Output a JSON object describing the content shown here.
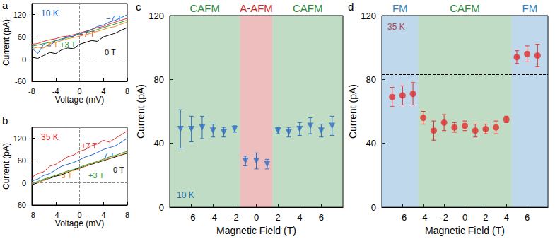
{
  "chart_data": [
    {
      "type": "line",
      "title": "a",
      "annotation": "10 K",
      "annotation_color": "#2060d0",
      "xlabel": "Voltage (mV)",
      "ylabel": "Current (pA)",
      "xlim": [
        -8,
        8
      ],
      "xticks": [
        -8,
        -4,
        0,
        4,
        8
      ],
      "ylim": [
        -60,
        150
      ],
      "yticks": [
        -60,
        0,
        60,
        120
      ],
      "hlines": [
        0
      ],
      "vlines": [
        0
      ],
      "x": [
        -8,
        -7,
        -6,
        -5,
        -4,
        -3,
        -2,
        -1,
        0,
        1,
        2,
        3,
        4,
        5,
        6,
        7,
        8
      ],
      "series": [
        {
          "name": "0 T",
          "color": "#000000",
          "values": [
            5,
            2,
            10,
            18,
            15,
            25,
            30,
            28,
            40,
            45,
            50,
            48,
            60,
            65,
            70,
            78,
            85
          ]
        },
        {
          "name": "−3 T",
          "color": "#f08a24",
          "values": [
            28,
            32,
            30,
            42,
            45,
            50,
            55,
            58,
            62,
            66,
            70,
            75,
            80,
            85,
            88,
            95,
            100
          ]
        },
        {
          "name": "+3 T",
          "color": "#2e9a3a",
          "values": [
            35,
            38,
            42,
            45,
            50,
            55,
            58,
            62,
            68,
            72,
            75,
            80,
            85,
            90,
            95,
            100,
            105
          ]
        },
        {
          "name": "+7 T",
          "color": "#e03030",
          "values": [
            40,
            42,
            48,
            52,
            55,
            60,
            62,
            66,
            70,
            75,
            80,
            85,
            88,
            95,
            100,
            105,
            110
          ]
        },
        {
          "name": "−7 T",
          "color": "#2060d0",
          "values": [
            30,
            15,
            40,
            35,
            50,
            52,
            60,
            62,
            70,
            72,
            80,
            88,
            92,
            100,
            105,
            112,
            120
          ]
        }
      ]
    },
    {
      "type": "line",
      "title": "b",
      "annotation": "35 K",
      "annotation_color": "#e03030",
      "xlabel": "Voltage (mV)",
      "ylabel": "Current (pA)",
      "xlim": [
        -8,
        8
      ],
      "xticks": [
        -8,
        -4,
        0,
        4,
        8
      ],
      "ylim": [
        -60,
        150
      ],
      "yticks": [
        -60,
        0,
        60,
        120
      ],
      "hlines": [
        0
      ],
      "vlines": [
        0
      ],
      "x": [
        -8,
        -7,
        -6,
        -5,
        -4,
        -3,
        -2,
        -1,
        0,
        1,
        2,
        3,
        4,
        5,
        6,
        7,
        8
      ],
      "series": [
        {
          "name": "0 T",
          "color": "#000000",
          "values": [
            -5,
            0,
            8,
            12,
            18,
            22,
            28,
            35,
            40,
            45,
            50,
            55,
            60,
            65,
            70,
            75,
            80
          ]
        },
        {
          "name": "−3 T",
          "color": "#f08a24",
          "values": [
            -3,
            2,
            6,
            14,
            20,
            25,
            30,
            33,
            38,
            45,
            52,
            56,
            62,
            66,
            72,
            76,
            82
          ]
        },
        {
          "name": "+3 T",
          "color": "#2e9a3a",
          "values": [
            -2,
            4,
            10,
            15,
            20,
            26,
            32,
            36,
            42,
            48,
            53,
            58,
            64,
            70,
            74,
            80,
            85
          ]
        },
        {
          "name": "+7 T",
          "color": "#e03030",
          "values": [
            15,
            25,
            30,
            45,
            50,
            60,
            70,
            75,
            85,
            90,
            100,
            105,
            115,
            110,
            120,
            130,
            140
          ]
        },
        {
          "name": "−7 T",
          "color": "#2060d0",
          "values": [
            5,
            10,
            20,
            25,
            35,
            45,
            50,
            55,
            62,
            70,
            75,
            82,
            90,
            95,
            100,
            110,
            120
          ]
        }
      ]
    },
    {
      "type": "scatter",
      "title": "c",
      "annotation": "10 K",
      "annotation_color": "#2060d0",
      "xlabel": "Magnetic Field (T)",
      "ylabel": "Current (pA)",
      "xlim": [
        -8,
        8
      ],
      "xticks": [
        -6,
        -4,
        -2,
        0,
        2,
        4,
        6
      ],
      "ylim": [
        0,
        120
      ],
      "yticks": [
        0,
        40,
        80,
        120
      ],
      "regions": [
        {
          "label": "CAFM",
          "from": -8,
          "to": -1.5,
          "color": "#2e8b3a"
        },
        {
          "label": "A-AFM",
          "from": -1.5,
          "to": 1.5,
          "color": "#c62828"
        },
        {
          "label": "CAFM",
          "from": 1.5,
          "to": 8,
          "color": "#2e8b3a"
        }
      ],
      "x": [
        -7,
        -6,
        -5,
        -4,
        -3,
        -2,
        -1,
        0,
        1,
        2,
        3,
        4,
        5,
        6,
        7
      ],
      "series": [
        {
          "color": "#2f6fc0",
          "marker": "triangle_down",
          "values": [
            49,
            49,
            50,
            48,
            47,
            49,
            29,
            29,
            27,
            48,
            47,
            49,
            51,
            48,
            51
          ],
          "errors": [
            12,
            8,
            7,
            4,
            3,
            2,
            3,
            5,
            3,
            2,
            3,
            4,
            5,
            4,
            6
          ]
        }
      ]
    },
    {
      "type": "scatter",
      "title": "d",
      "annotation": "35 K",
      "annotation_color": "#e03030",
      "xlabel": "Magnetic Field (T)",
      "ylabel": "Current (pA)",
      "xlim": [
        -8,
        8
      ],
      "xticks": [
        -6,
        -4,
        -2,
        0,
        2,
        4,
        6
      ],
      "ylim": [
        0,
        120
      ],
      "yticks": [
        0,
        40,
        80,
        120
      ],
      "hlines": [
        83
      ],
      "regions": [
        {
          "label": "FM",
          "from": -8,
          "to": -4.5,
          "color": "#2f7fc1"
        },
        {
          "label": "CAFM",
          "from": -4.5,
          "to": 4.5,
          "color": "#2e8b3a"
        },
        {
          "label": "FM",
          "from": 4.5,
          "to": 8,
          "color": "#2f7fc1"
        }
      ],
      "x": [
        -7,
        -6,
        -5,
        -4,
        -3,
        -2,
        -1,
        0,
        1,
        2,
        3,
        4,
        5,
        6,
        7
      ],
      "series": [
        {
          "color": "#e03030",
          "marker": "circle",
          "values": [
            69,
            70,
            71,
            56,
            48,
            53,
            50,
            51,
            48,
            49,
            50,
            55,
            94,
            96,
            95
          ],
          "errors": [
            6,
            6,
            7,
            4,
            6,
            5,
            3,
            3,
            4,
            3,
            4,
            2,
            4,
            5,
            7
          ]
        }
      ]
    }
  ]
}
